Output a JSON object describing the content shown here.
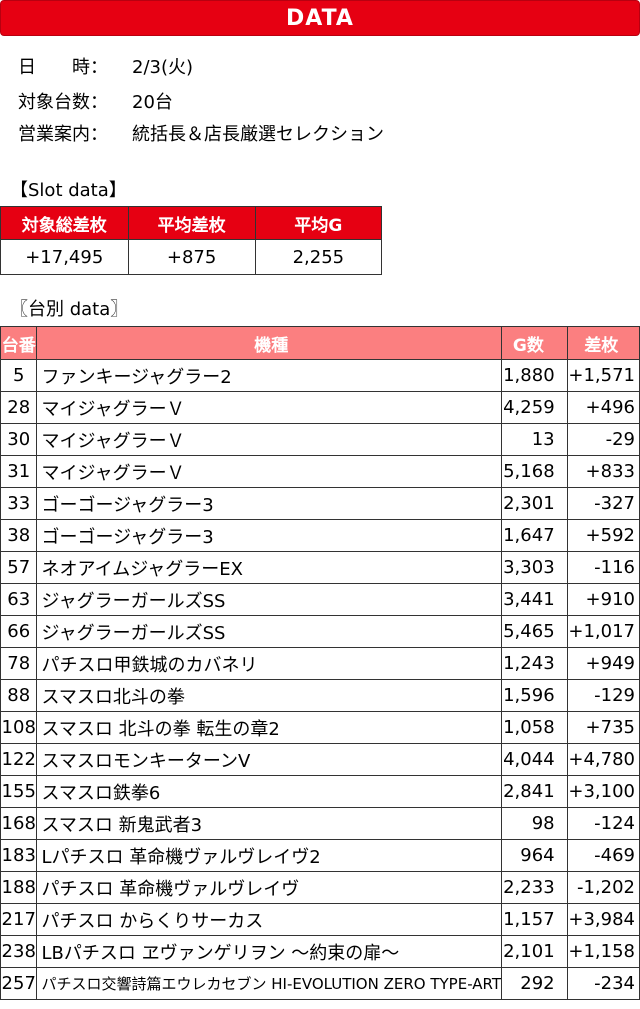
{
  "banner": "DATA",
  "info": [
    {
      "label": "日　　時：",
      "value": "2/3(火)"
    },
    {
      "label": "対象台数：",
      "value": "20台"
    },
    {
      "label": "営業案内：",
      "value": "統括長＆店長厳選セレクション"
    }
  ],
  "slot_section": "【Slot data】",
  "summary": {
    "headers": [
      "対象総差枚",
      "平均差枚",
      "平均G"
    ],
    "values": [
      "+17,495",
      "+875",
      "2,255"
    ]
  },
  "machine_section": "〖台別 data〗",
  "table": {
    "headers": [
      "台番",
      "機種",
      "G数",
      "差枚"
    ],
    "rows": [
      {
        "no": "5",
        "machine": "ファンキージャグラー2",
        "games": "1,880",
        "diff": "+1,571"
      },
      {
        "no": "28",
        "machine": "マイジャグラーＶ",
        "games": "4,259",
        "diff": "+496"
      },
      {
        "no": "30",
        "machine": "マイジャグラーＶ",
        "games": "13",
        "diff": "-29"
      },
      {
        "no": "31",
        "machine": "マイジャグラーＶ",
        "games": "5,168",
        "diff": "+833"
      },
      {
        "no": "33",
        "machine": "ゴーゴージャグラー3",
        "games": "2,301",
        "diff": "-327"
      },
      {
        "no": "38",
        "machine": "ゴーゴージャグラー3",
        "games": "1,647",
        "diff": "+592"
      },
      {
        "no": "57",
        "machine": "ネオアイムジャグラーEX",
        "games": "3,303",
        "diff": "-116"
      },
      {
        "no": "63",
        "machine": "ジャグラーガールズSS",
        "games": "3,441",
        "diff": "+910"
      },
      {
        "no": "66",
        "machine": "ジャグラーガールズSS",
        "games": "5,465",
        "diff": "+1,017"
      },
      {
        "no": "78",
        "machine": "パチスロ甲鉄城のカバネリ",
        "games": "1,243",
        "diff": "+949"
      },
      {
        "no": "88",
        "machine": "スマスロ北斗の拳",
        "games": "1,596",
        "diff": "-129"
      },
      {
        "no": "108",
        "machine": "スマスロ 北斗の拳 転生の章2",
        "games": "1,058",
        "diff": "+735"
      },
      {
        "no": "122",
        "machine": "スマスロモンキーターンV",
        "games": "4,044",
        "diff": "+4,780"
      },
      {
        "no": "155",
        "machine": "スマスロ鉄拳6",
        "games": "2,841",
        "diff": "+3,100"
      },
      {
        "no": "168",
        "machine": "スマスロ 新鬼武者3",
        "games": "98",
        "diff": "-124"
      },
      {
        "no": "183",
        "machine": "Lパチスロ 革命機ヴァルヴレイヴ2",
        "games": "964",
        "diff": "-469"
      },
      {
        "no": "188",
        "machine": "パチスロ 革命機ヴァルヴレイヴ",
        "games": "2,233",
        "diff": "-1,202"
      },
      {
        "no": "217",
        "machine": "パチスロ からくりサーカス",
        "games": "1,157",
        "diff": "+3,984"
      },
      {
        "no": "238",
        "machine": "LBパチスロ ヱヴァンゲリヲン ～約束の扉～",
        "games": "2,101",
        "diff": "+1,158"
      },
      {
        "no": "257",
        "machine": "パチスロ交響詩篇エウレカセブン HI-EVOLUTION ZERO TYPE-ART",
        "games": "292",
        "diff": "-234"
      }
    ]
  },
  "colors": {
    "banner_red": "#e60012",
    "header_pink": "#fb7f80"
  }
}
